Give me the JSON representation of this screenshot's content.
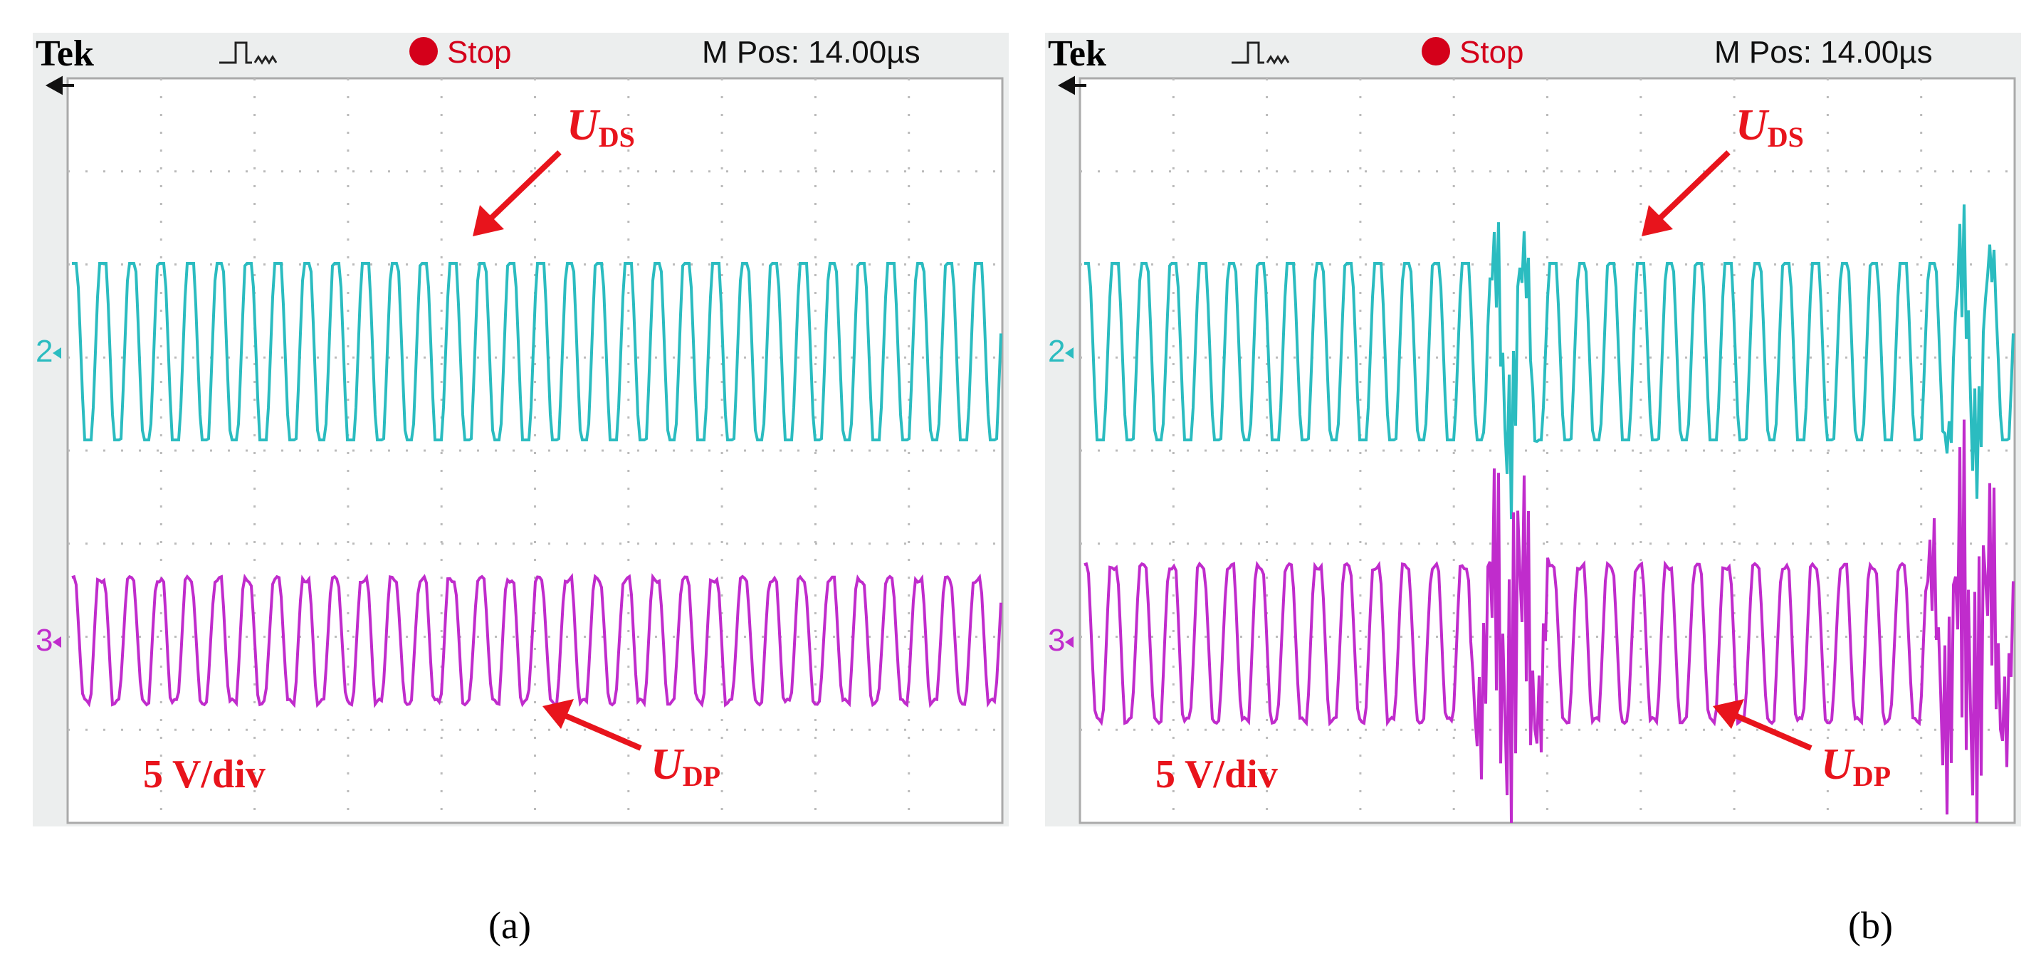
{
  "panels": [
    {
      "header": {
        "brand": "Tek",
        "status": "Stop",
        "position": "M Pos: 14.00µs"
      },
      "channels": [
        "2",
        "3"
      ],
      "labels": {
        "uds": "U",
        "uds_sub": "DS",
        "udp": "U",
        "udp_sub": "DP",
        "scale": "5 V/div"
      },
      "caption": "(a)"
    },
    {
      "header": {
        "brand": "Tek",
        "status": "Stop",
        "position": "M Pos: 14.00µs"
      },
      "channels": [
        "2",
        "3"
      ],
      "labels": {
        "uds": "U",
        "uds_sub": "DS",
        "udp": "U",
        "udp_sub": "DP",
        "scale": "5 V/div"
      },
      "caption": "(b)"
    }
  ]
}
